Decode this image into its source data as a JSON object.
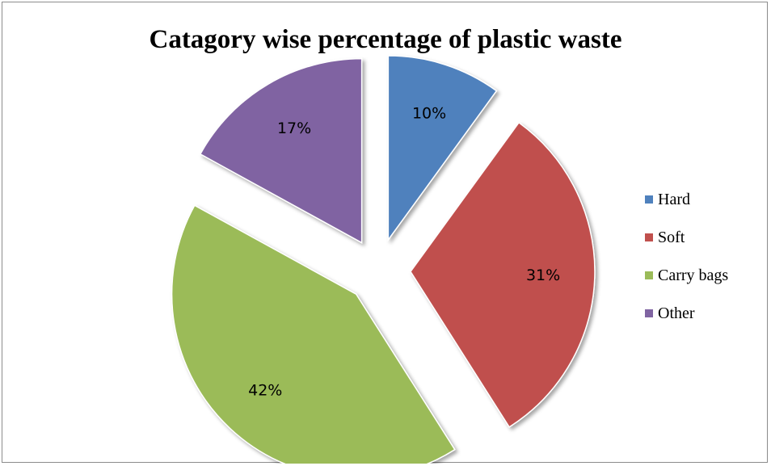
{
  "chart_data": {
    "type": "pie",
    "title": "Catagory wise percentage of plastic waste",
    "categories": [
      "Hard",
      "Soft",
      "Carry bags",
      "Other"
    ],
    "values": [
      10,
      31,
      42,
      17
    ],
    "data_labels": [
      "10%",
      "31%",
      "42%",
      "17%"
    ],
    "colors": [
      "#4f81bd",
      "#c0504d",
      "#9bbb59",
      "#8064a2"
    ],
    "exploded": true,
    "legend_position": "right"
  }
}
